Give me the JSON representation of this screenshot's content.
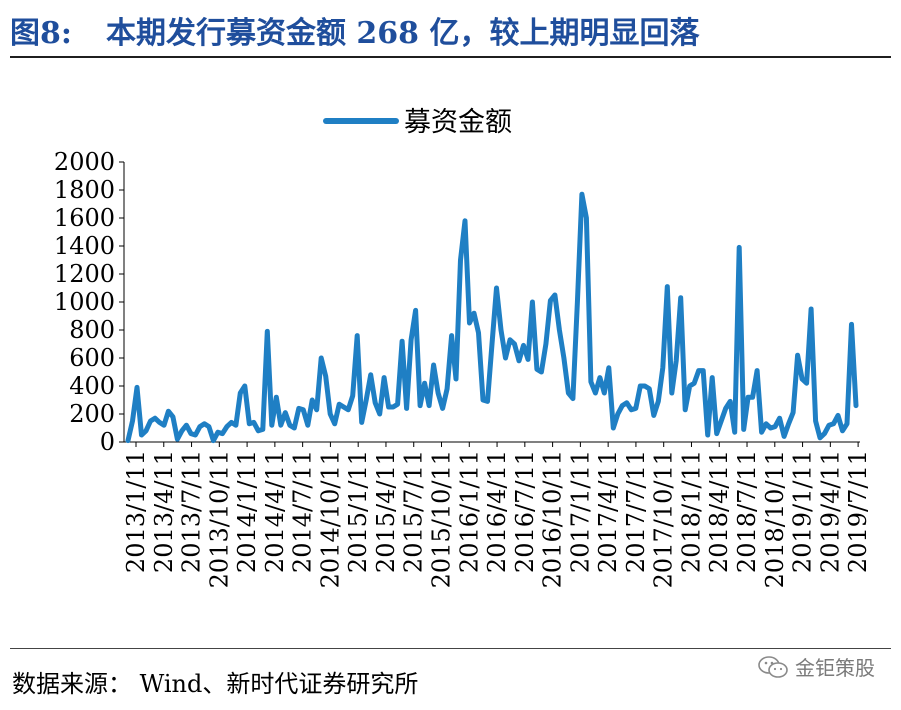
{
  "title": {
    "label": "图8:",
    "text": "本期发行募资金额 268 亿，较上期明显回落"
  },
  "source": "数据来源： Wind、新时代证券研究所",
  "watermark": "金钜策股",
  "colors": {
    "title": "#1f4e9c",
    "series": "#1f7fc4"
  },
  "chart_data": {
    "type": "line",
    "title": "",
    "xlabel": "",
    "ylabel": "",
    "ylim": [
      0,
      2000
    ],
    "yticks": [
      0,
      200,
      400,
      600,
      800,
      1000,
      1200,
      1400,
      1600,
      1800,
      2000
    ],
    "grid": false,
    "legend_position": "top-center",
    "x_tick_labels": [
      "2013/1/11",
      "2013/4/11",
      "2013/7/11",
      "2013/10/11",
      "2014/1/11",
      "2014/4/11",
      "2014/7/11",
      "2014/10/11",
      "2015/1/11",
      "2015/4/11",
      "2015/7/11",
      "2015/10/11",
      "2016/1/11",
      "2016/4/11",
      "2016/7/11",
      "2016/10/11",
      "2017/1/11",
      "2017/4/11",
      "2017/7/11",
      "2017/10/11",
      "2018/1/11",
      "2018/4/11",
      "2018/7/11",
      "2018/10/11",
      "2019/1/11",
      "2019/4/11",
      "2019/7/11"
    ],
    "series": [
      {
        "name": "募资金额",
        "values": [
          10,
          150,
          390,
          50,
          80,
          150,
          170,
          140,
          120,
          220,
          180,
          20,
          80,
          120,
          60,
          50,
          110,
          130,
          110,
          10,
          70,
          60,
          110,
          140,
          120,
          350,
          400,
          130,
          140,
          80,
          90,
          790,
          120,
          320,
          120,
          210,
          120,
          100,
          240,
          230,
          120,
          300,
          230,
          600,
          470,
          200,
          130,
          270,
          250,
          230,
          330,
          760,
          140,
          300,
          480,
          280,
          200,
          460,
          250,
          250,
          270,
          720,
          240,
          730,
          940,
          260,
          420,
          260,
          550,
          350,
          240,
          380,
          760,
          450,
          1300,
          1580,
          850,
          920,
          780,
          300,
          290,
          700,
          1100,
          800,
          600,
          730,
          700,
          580,
          690,
          590,
          1000,
          520,
          500,
          700,
          1010,
          1050,
          800,
          600,
          350,
          310,
          1000,
          1770,
          1600,
          430,
          350,
          460,
          350,
          530,
          100,
          200,
          260,
          280,
          230,
          240,
          400,
          400,
          380,
          190,
          290,
          530,
          1110,
          350,
          580,
          1030,
          230,
          400,
          420,
          510,
          510,
          50,
          460,
          60,
          150,
          240,
          290,
          70,
          1390,
          90,
          320,
          320,
          510,
          70,
          130,
          100,
          110,
          170,
          40,
          130,
          210,
          620,
          450,
          420,
          950,
          150,
          30,
          60,
          120,
          130,
          190,
          80,
          130,
          840,
          260
        ]
      }
    ]
  }
}
